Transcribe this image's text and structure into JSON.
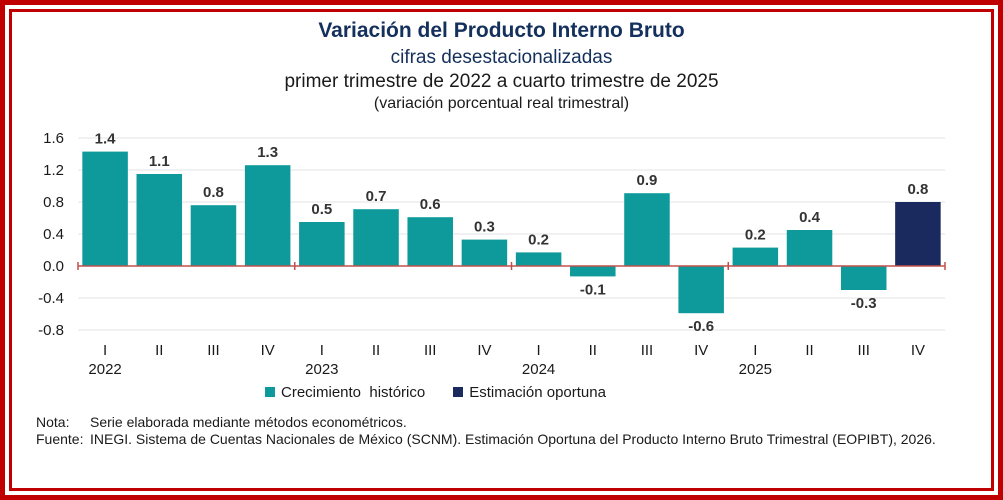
{
  "header": {
    "title": "Variación del Producto Interno Bruto",
    "subtitle1": "cifras desestacionalizadas",
    "subtitle2": "primer trimestre de 2022 a cuarto trimestre de 2025",
    "subtitle3": "(variación porcentual real trimestral)"
  },
  "chart_data": {
    "type": "bar",
    "title": "Variación del Producto Interno Bruto",
    "xlabel": "",
    "ylabel": "",
    "ylim": [
      -0.8,
      1.6
    ],
    "yticks": [
      "1.6",
      "1.2",
      "0.8",
      "0.4",
      "0.0",
      "-0.4",
      "-0.8"
    ],
    "ytick_values": [
      1.6,
      1.2,
      0.8,
      0.4,
      0.0,
      -0.4,
      -0.8
    ],
    "categories": [
      "I",
      "II",
      "III",
      "IV",
      "I",
      "II",
      "III",
      "IV",
      "I",
      "II",
      "III",
      "IV",
      "I",
      "II",
      "III",
      "IV"
    ],
    "years": [
      "2022",
      "2023",
      "2024",
      "2025"
    ],
    "values": [
      1.4,
      1.1,
      0.8,
      1.3,
      0.5,
      0.7,
      0.6,
      0.3,
      0.2,
      -0.1,
      0.9,
      -0.6,
      0.2,
      0.4,
      -0.3,
      0.8
    ],
    "plot_values": [
      1.43,
      1.15,
      0.76,
      1.26,
      0.55,
      0.71,
      0.61,
      0.33,
      0.17,
      -0.13,
      0.91,
      -0.59,
      0.23,
      0.45,
      -0.3,
      0.8
    ],
    "labels": [
      "1.4",
      "1.1",
      "0.8",
      "1.3",
      "0.5",
      "0.7",
      "0.6",
      "0.3",
      "0.2",
      "-0.1",
      "0.9",
      "-0.6",
      "0.2",
      "0.4",
      "-0.3",
      "0.8"
    ],
    "series_index": [
      0,
      0,
      0,
      0,
      0,
      0,
      0,
      0,
      0,
      0,
      0,
      0,
      0,
      0,
      0,
      1
    ],
    "series": [
      {
        "name": "Crecimiento  histórico",
        "color": "#0e9a9a"
      },
      {
        "name": "Estimación oportuna",
        "color": "#1b2a5e"
      }
    ],
    "axis_color": "#c0504d"
  },
  "legend": {
    "items": [
      {
        "label": "Crecimiento  histórico",
        "color": "#0e9a9a"
      },
      {
        "label": "Estimación oportuna",
        "color": "#1b2a5e"
      }
    ]
  },
  "notes": {
    "nota_label": "Nota:",
    "nota_text": "Serie elaborada mediante métodos econométricos.",
    "fuente_label": "Fuente:",
    "fuente_text": "INEGI. Sistema de Cuentas Nacionales de México (SCNM). Estimación Oportuna del Producto Interno Bruto Trimestral (EOPIBT), 2026."
  }
}
